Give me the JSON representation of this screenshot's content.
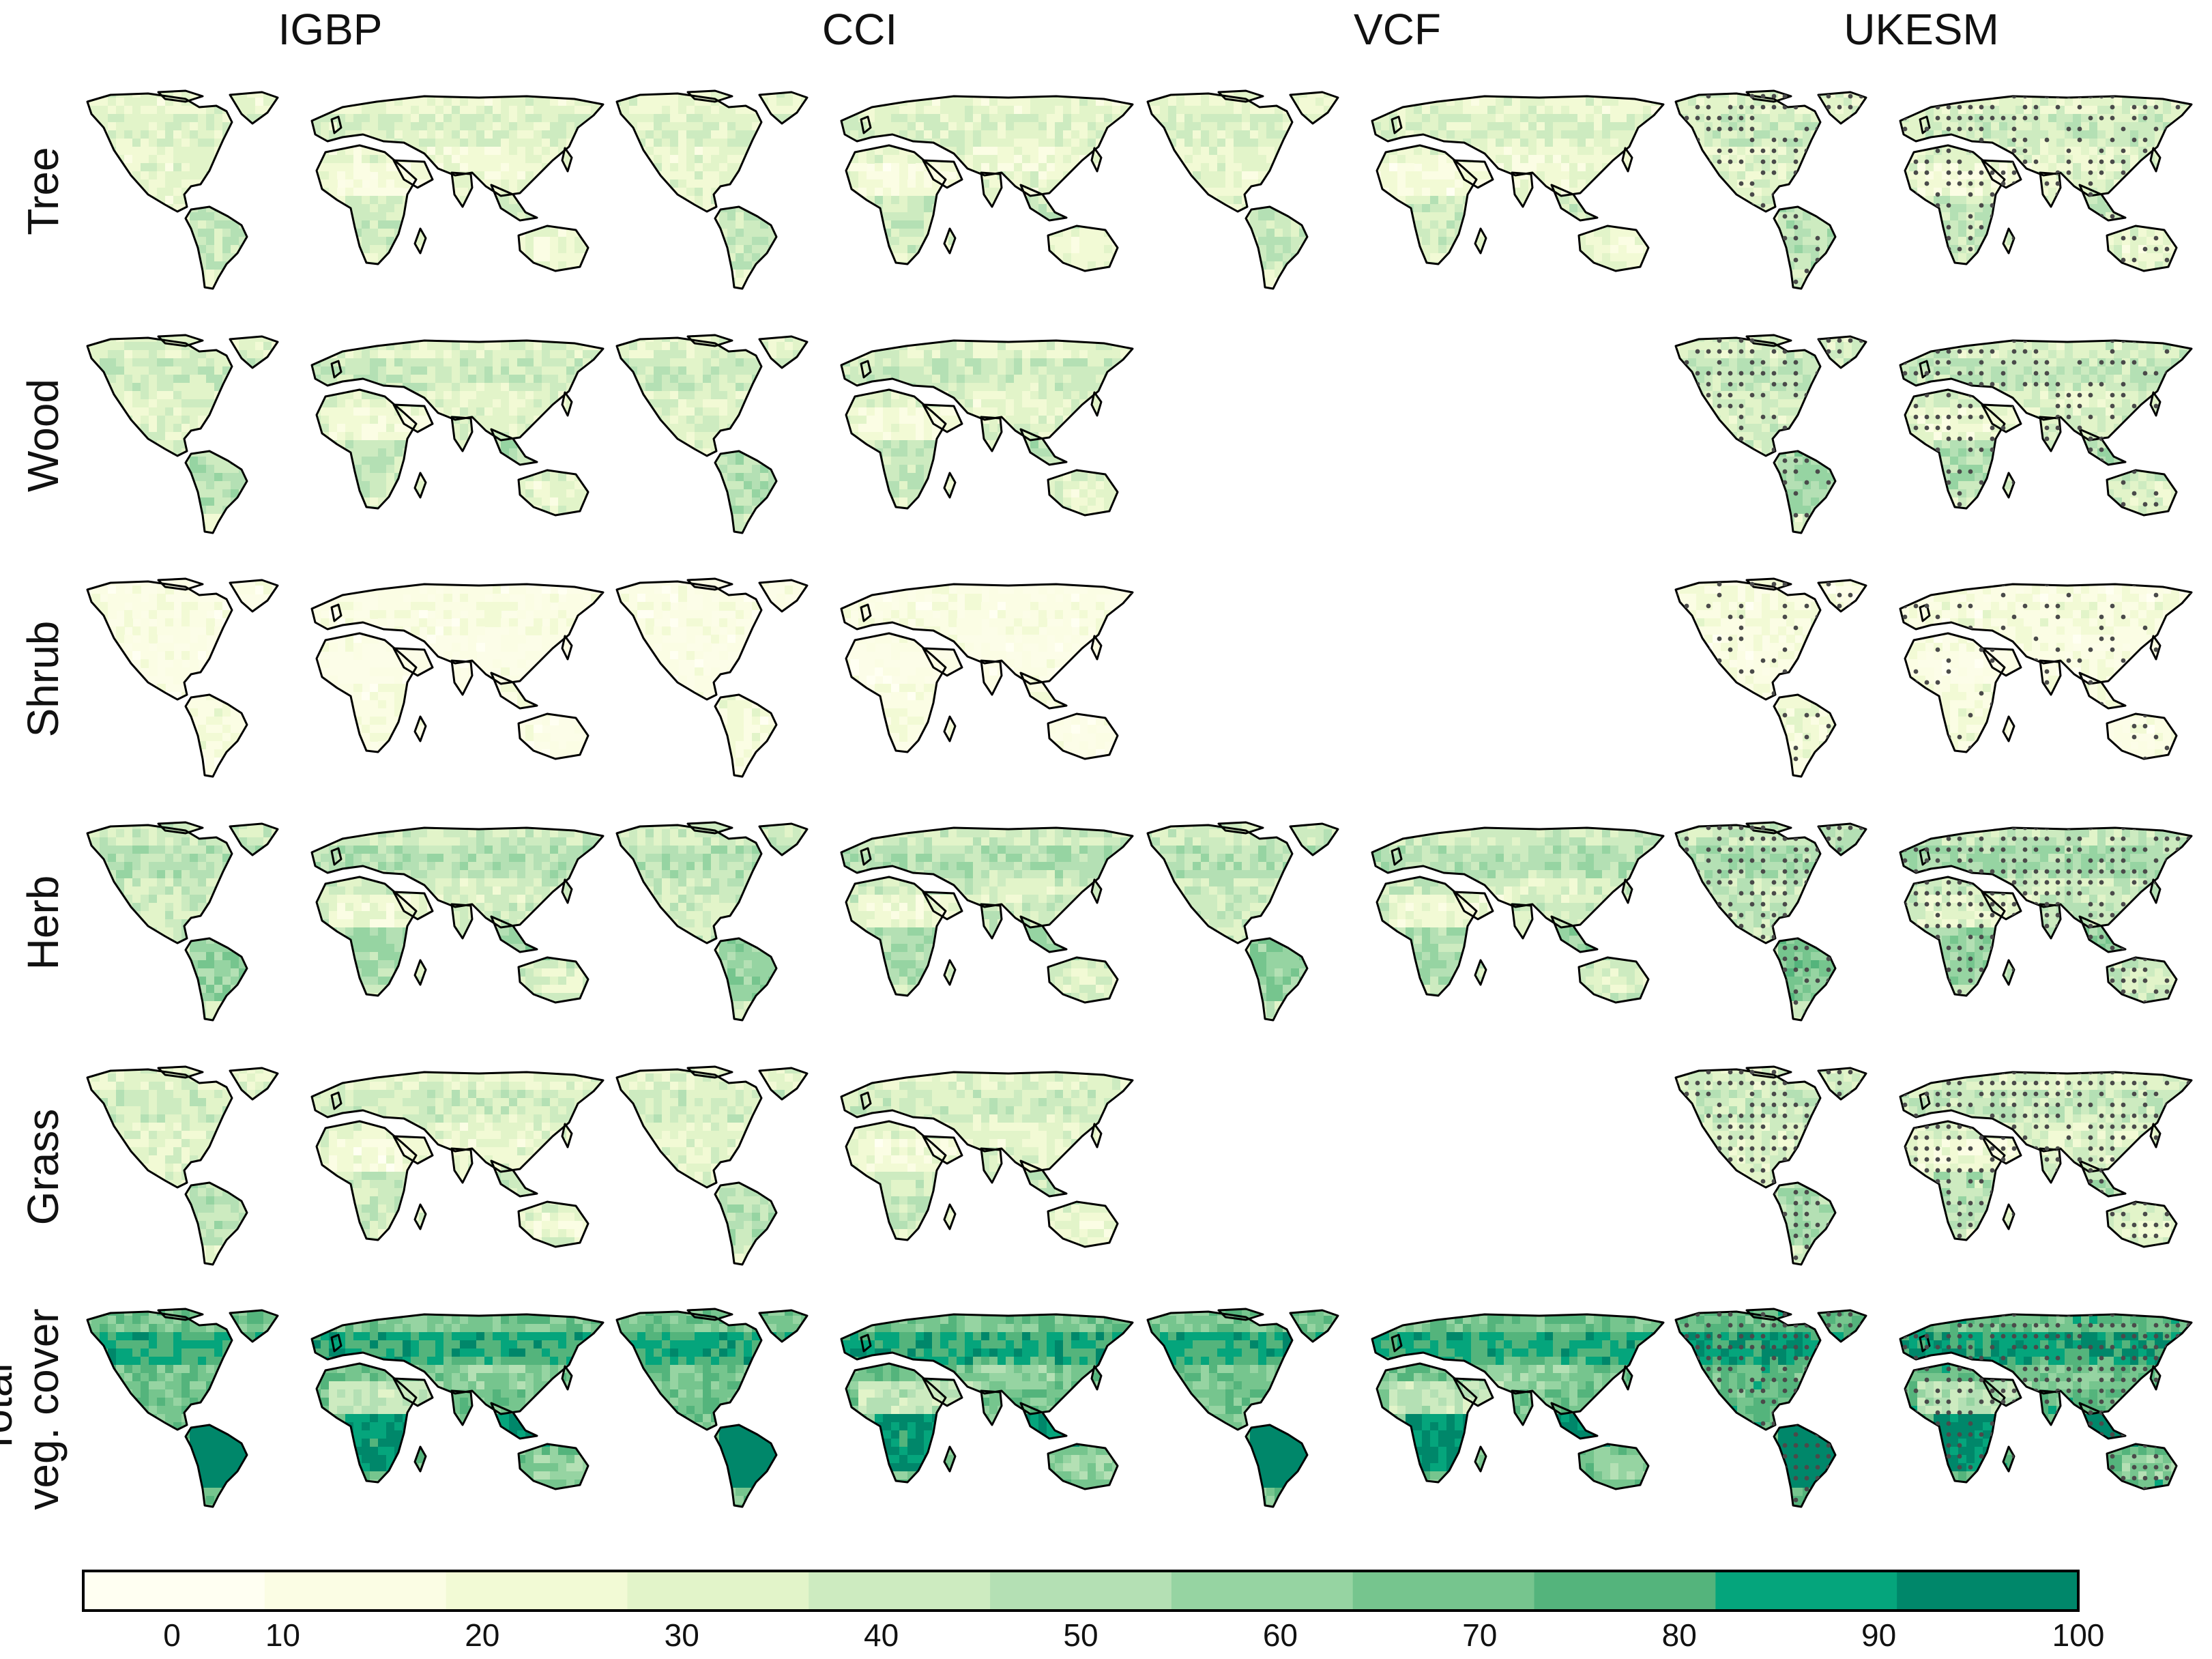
{
  "figure": {
    "columns": [
      "IGBP",
      "CCI",
      "VCF",
      "UKESM"
    ],
    "rows": [
      {
        "label_lines": [
          "Tree"
        ],
        "available": [
          true,
          true,
          true,
          true
        ],
        "base": 0.25,
        "stipple": "medium"
      },
      {
        "label_lines": [
          "Wood"
        ],
        "available": [
          true,
          true,
          false,
          true
        ],
        "base": 0.3,
        "stipple": "medium"
      },
      {
        "label_lines": [
          "Shrub"
        ],
        "available": [
          true,
          true,
          false,
          true
        ],
        "base": 0.06,
        "stipple": "light"
      },
      {
        "label_lines": [
          "Herb"
        ],
        "available": [
          true,
          true,
          true,
          true
        ],
        "base": 0.38,
        "stipple": "dense"
      },
      {
        "label_lines": [
          "Grass"
        ],
        "available": [
          true,
          true,
          false,
          true
        ],
        "base": 0.28,
        "stipple": "dense"
      },
      {
        "label_lines": [
          "Total",
          "veg. cover"
        ],
        "available": [
          true,
          true,
          true,
          true
        ],
        "base": 0.7,
        "stipple": "dense"
      }
    ],
    "stipple_column": "UKESM"
  },
  "colorbar": {
    "min": 0,
    "max": 100,
    "tick_labels": [
      "0",
      "10",
      "20",
      "30",
      "40",
      "50",
      "60",
      "70",
      "80",
      "90",
      "100"
    ],
    "colors": [
      "#fffff2",
      "#fbfde4",
      "#f2fad5",
      "#e2f4c9",
      "#cdebc0",
      "#b4e0b4",
      "#96d4a2",
      "#76c58e",
      "#54b47c",
      "#05a57c",
      "#00876a"
    ]
  },
  "colors": {
    "land_base": "#fcfde8",
    "coast": "#000000",
    "stipple": "#4a4a4a"
  }
}
